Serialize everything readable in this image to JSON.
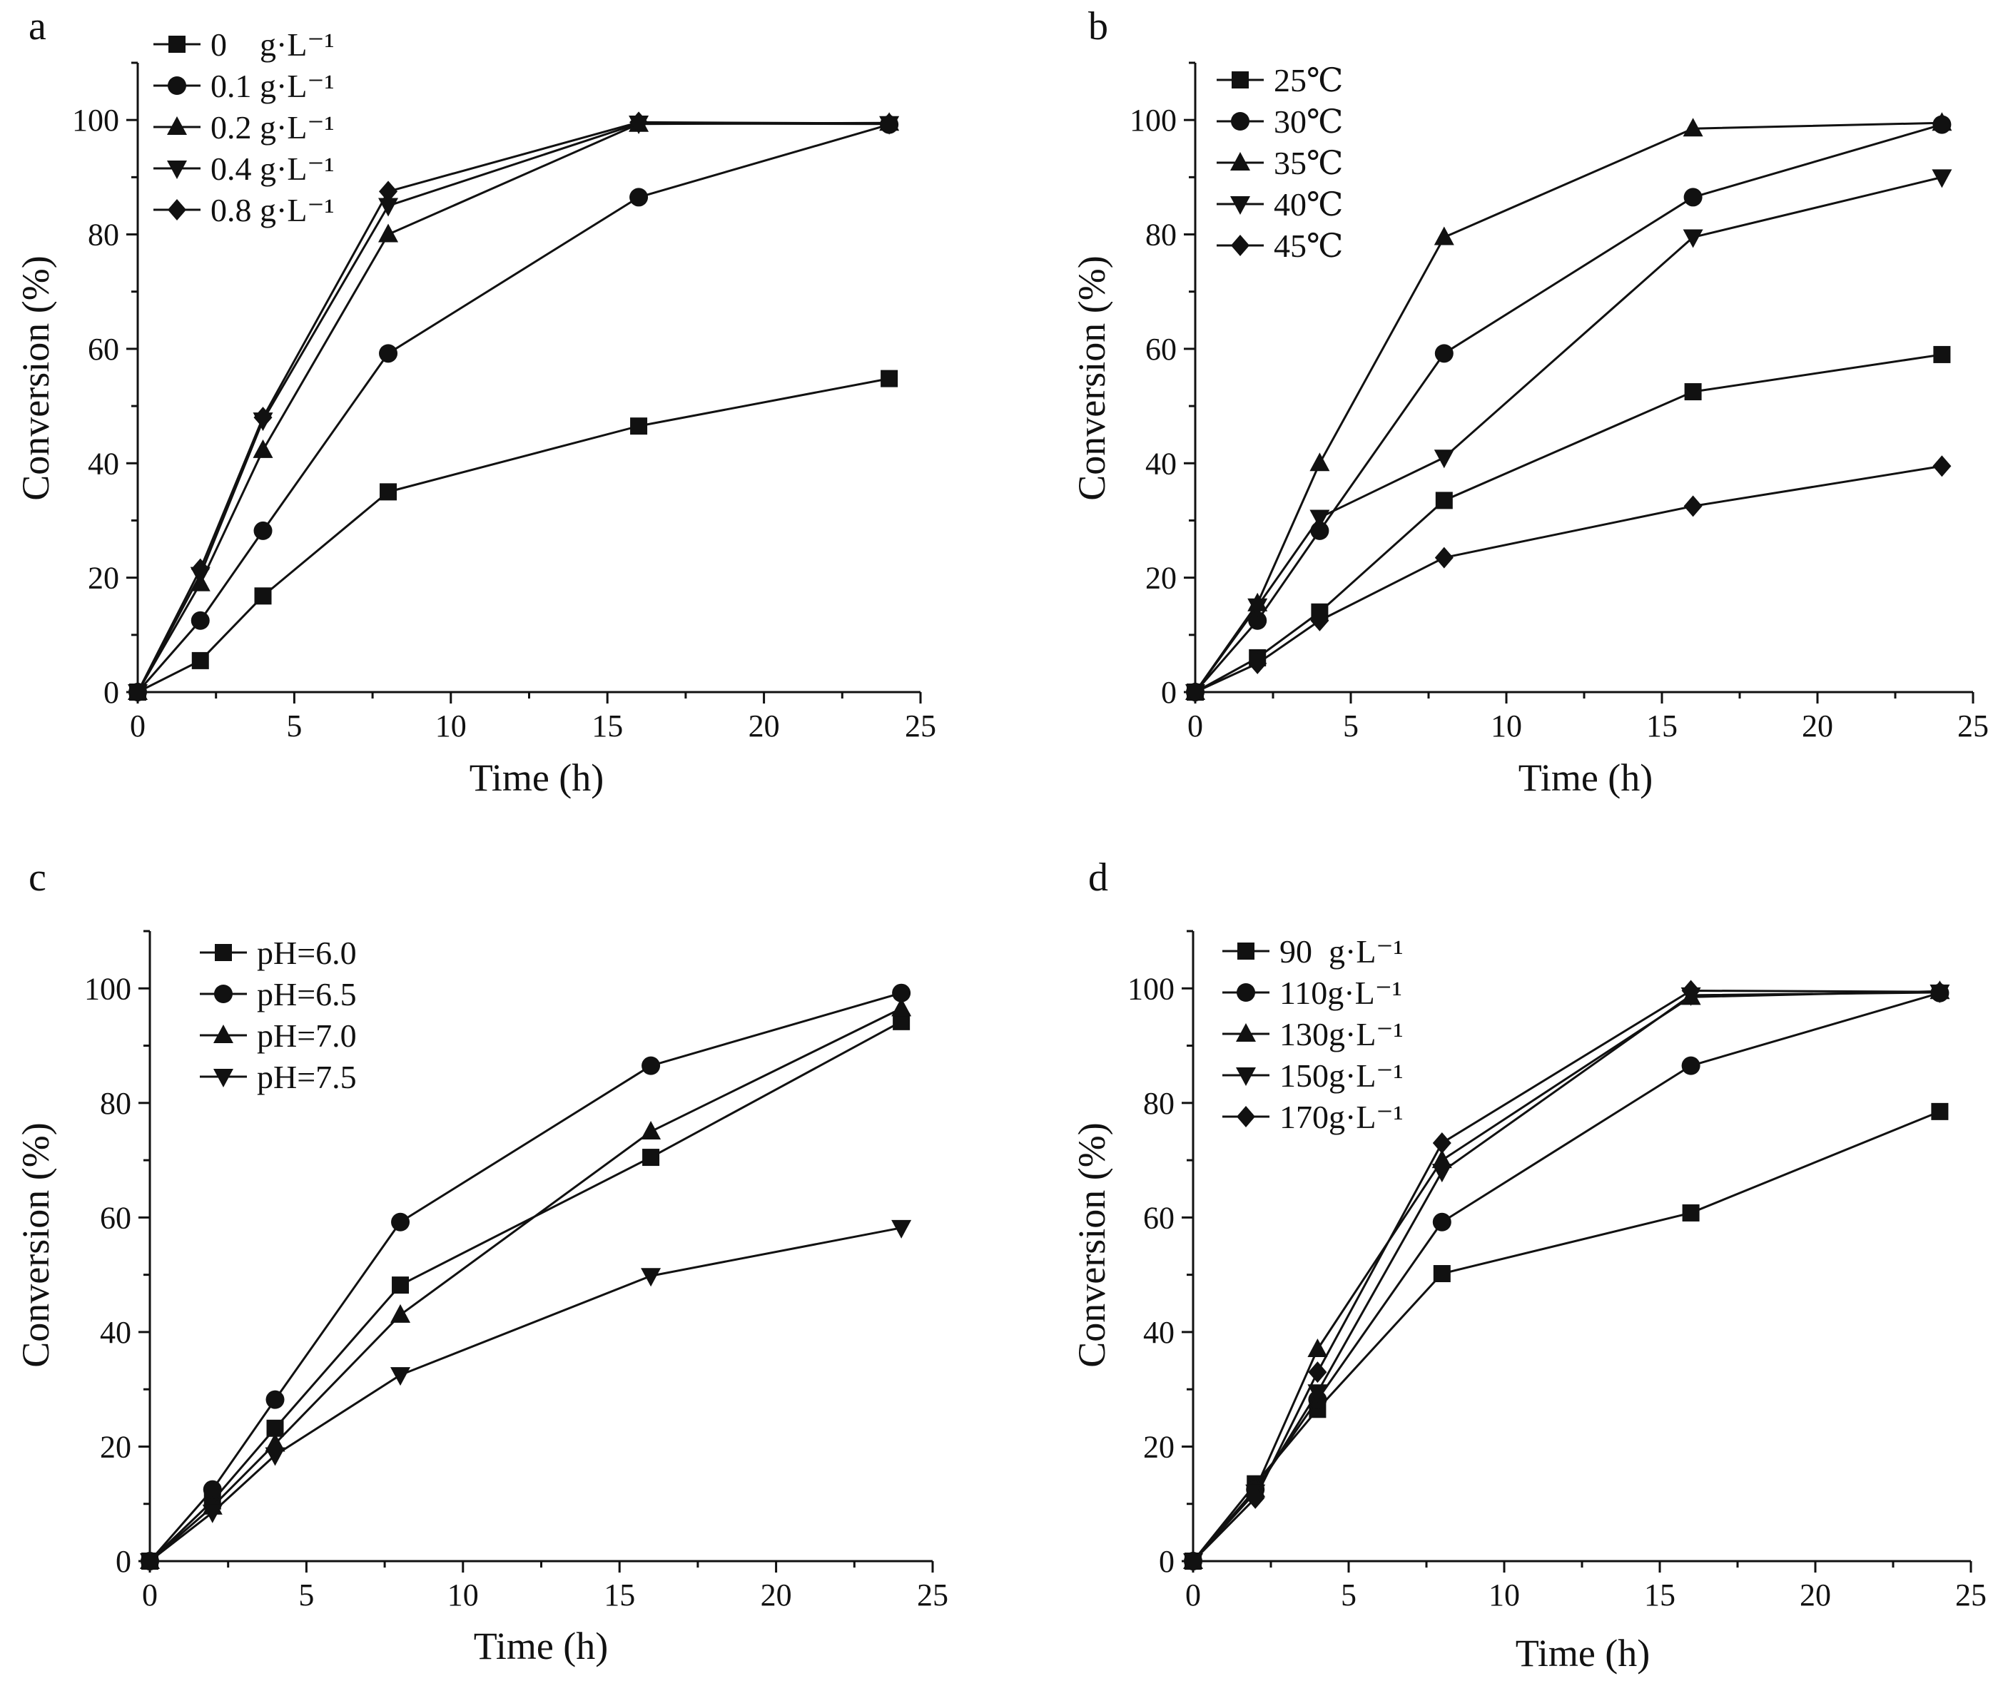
{
  "figure": {
    "background": "#ffffff",
    "line_color": "#111111"
  },
  "chart_data": [
    {
      "panel": "a",
      "type": "line",
      "title": "",
      "xlabel": "Time (h)",
      "ylabel": "Conversion (%)",
      "xlim": [
        0,
        25
      ],
      "ylim": [
        0,
        110
      ],
      "xticks": [
        0,
        5,
        10,
        15,
        20,
        25
      ],
      "yticks": [
        0,
        20,
        40,
        60,
        80,
        100
      ],
      "x": [
        0,
        2,
        4,
        8,
        16,
        24
      ],
      "legend_position": "top-left",
      "series": [
        {
          "name": "0    g·L⁻¹",
          "marker": "square",
          "values": [
            0,
            5.5,
            16.8,
            35,
            46.5,
            54.8
          ]
        },
        {
          "name": "0.1 g·L⁻¹",
          "marker": "circle",
          "values": [
            0,
            12.5,
            28.2,
            59.2,
            86.5,
            99.2
          ]
        },
        {
          "name": "0.2 g·L⁻¹",
          "marker": "triangle-up",
          "values": [
            0,
            19,
            42.3,
            80,
            99.3,
            99.5
          ]
        },
        {
          "name": "0.4 g·L⁻¹",
          "marker": "triangle-down",
          "values": [
            0,
            20.5,
            47.5,
            85,
            99.4,
            99.3
          ]
        },
        {
          "name": "0.8 g·L⁻¹",
          "marker": "diamond",
          "values": [
            0,
            21.5,
            48,
            87.5,
            99.6,
            99.4
          ]
        }
      ]
    },
    {
      "panel": "b",
      "type": "line",
      "title": "",
      "xlabel": "Time (h)",
      "ylabel": "Conversion (%)",
      "xlim": [
        0,
        25
      ],
      "ylim": [
        0,
        110
      ],
      "xticks": [
        0,
        5,
        10,
        15,
        20,
        25
      ],
      "yticks": [
        0,
        20,
        40,
        60,
        80,
        100
      ],
      "x": [
        0,
        2,
        4,
        8,
        16,
        24
      ],
      "legend_position": "top-left",
      "series": [
        {
          "name": "25℃",
          "marker": "square",
          "values": [
            0,
            6,
            14,
            33.5,
            52.5,
            59
          ]
        },
        {
          "name": "30℃",
          "marker": "circle",
          "values": [
            0,
            12.5,
            28.2,
            59.2,
            86.5,
            99.2
          ]
        },
        {
          "name": "35℃",
          "marker": "triangle-up",
          "values": [
            0,
            15.5,
            40,
            79.5,
            98.5,
            99.5
          ]
        },
        {
          "name": "40℃",
          "marker": "triangle-down",
          "values": [
            0,
            15,
            30.5,
            41,
            79.5,
            90
          ]
        },
        {
          "name": "45℃",
          "marker": "diamond",
          "values": [
            0,
            5,
            12.5,
            23.5,
            32.5,
            39.5
          ]
        }
      ]
    },
    {
      "panel": "c",
      "type": "line",
      "title": "",
      "xlabel": "Time (h)",
      "ylabel": "Conversion (%)",
      "xlim": [
        0,
        25
      ],
      "ylim": [
        0,
        110
      ],
      "xticks": [
        0,
        5,
        10,
        15,
        20,
        25
      ],
      "yticks": [
        0,
        20,
        40,
        60,
        80,
        100
      ],
      "x": [
        0,
        2,
        4,
        8,
        16,
        24
      ],
      "legend_position": "top-left",
      "series": [
        {
          "name": "pH=6.0",
          "marker": "square",
          "values": [
            0,
            10.5,
            23.2,
            48.2,
            70.5,
            94.2
          ]
        },
        {
          "name": "pH=6.5",
          "marker": "circle",
          "values": [
            0,
            12.5,
            28.2,
            59.2,
            86.5,
            99.2
          ]
        },
        {
          "name": "pH=7.0",
          "marker": "triangle-up",
          "values": [
            0,
            9.5,
            20.5,
            43,
            75,
            96.5
          ]
        },
        {
          "name": "pH=7.5",
          "marker": "triangle-down",
          "values": [
            0,
            8.5,
            18.5,
            32.5,
            49.8,
            58.2
          ]
        }
      ]
    },
    {
      "panel": "d",
      "type": "line",
      "title": "",
      "xlabel": "Time (h)",
      "ylabel": "Conversion (%)",
      "xlim": [
        0,
        25
      ],
      "ylim": [
        0,
        110
      ],
      "xticks": [
        0,
        5,
        10,
        15,
        20,
        25
      ],
      "yticks": [
        0,
        20,
        40,
        60,
        80,
        100
      ],
      "x": [
        0,
        2,
        4,
        8,
        16,
        24
      ],
      "legend_position": "top-left",
      "series": [
        {
          "name": "90  g·L⁻¹",
          "marker": "square",
          "values": [
            0,
            13.5,
            26.5,
            50.2,
            60.8,
            78.5
          ]
        },
        {
          "name": "110g·L⁻¹",
          "marker": "circle",
          "values": [
            0,
            12.5,
            28.2,
            59.2,
            86.5,
            99.2
          ]
        },
        {
          "name": "130g·L⁻¹",
          "marker": "triangle-up",
          "values": [
            0,
            12.5,
            37,
            70,
            98.5,
            99.5
          ]
        },
        {
          "name": "150g·L⁻¹",
          "marker": "triangle-down",
          "values": [
            0,
            12,
            29.5,
            68,
            98.8,
            99.3
          ]
        },
        {
          "name": "170g·L⁻¹",
          "marker": "diamond",
          "values": [
            0,
            11,
            33,
            73,
            99.6,
            99.4
          ]
        }
      ]
    }
  ]
}
